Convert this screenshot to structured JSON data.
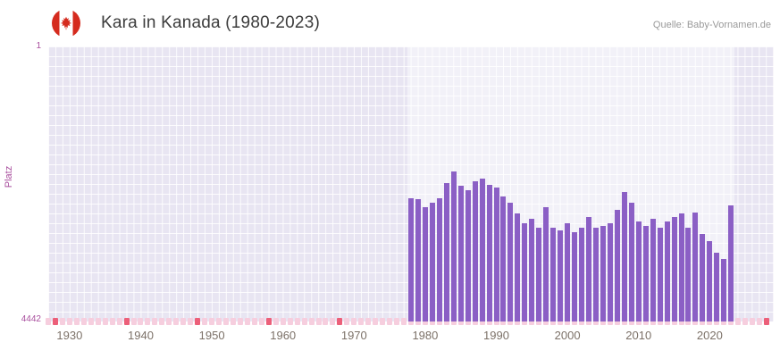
{
  "header": {
    "title": "Kara in Kanada (1980-2023)",
    "source": "Quelle: Baby-Vornamen.de",
    "flag_icon": "canada-flag-icon"
  },
  "chart_data": {
    "type": "bar",
    "title": "Kara in Kanada (1980-2023)",
    "ylabel": "Platz",
    "y_axis": {
      "min": 1,
      "max": 4442,
      "top_label": "1",
      "bottom_label": "4442",
      "inverted": true
    },
    "x_range": [
      1927,
      2029
    ],
    "x_ticks": [
      1930,
      1940,
      1950,
      1960,
      1970,
      1980,
      1990,
      2000,
      2010,
      2020
    ],
    "highlight_band": [
      1977.5,
      2023.5
    ],
    "bar_color": "#8b5fc5",
    "grid": true,
    "legend_position": "none",
    "series": [
      {
        "name": "Platz",
        "years": [
          1978,
          1979,
          1980,
          1981,
          1982,
          1983,
          1984,
          1985,
          1986,
          1987,
          1988,
          1989,
          1990,
          1991,
          1992,
          1993,
          1994,
          1995,
          1996,
          1997,
          1998,
          1999,
          2000,
          2001,
          2002,
          2003,
          2004,
          2005,
          2006,
          2007,
          2008,
          2009,
          2010,
          2011,
          2012,
          2013,
          2014,
          2015,
          2016,
          2017,
          2018,
          2019,
          2020,
          2021,
          2022,
          2023
        ],
        "ranks": [
          2450,
          2460,
          2600,
          2520,
          2450,
          2200,
          2020,
          2250,
          2320,
          2180,
          2130,
          2230,
          2280,
          2420,
          2520,
          2700,
          2850,
          2780,
          2930,
          2600,
          2930,
          2970,
          2860,
          3000,
          2930,
          2750,
          2930,
          2900,
          2850,
          2640,
          2350,
          2520,
          2830,
          2900,
          2780,
          2930,
          2830,
          2750,
          2700,
          2930,
          2680,
          3030,
          3150,
          3330,
          3430,
          2570
        ]
      }
    ],
    "bottom_strip": {
      "pale_color": "#f6cede",
      "strong_color": "#ec5f79",
      "year_from": 1927,
      "year_to": 2028,
      "strong_years": [
        1928,
        1938,
        1948,
        1958,
        1968,
        2028
      ]
    }
  }
}
